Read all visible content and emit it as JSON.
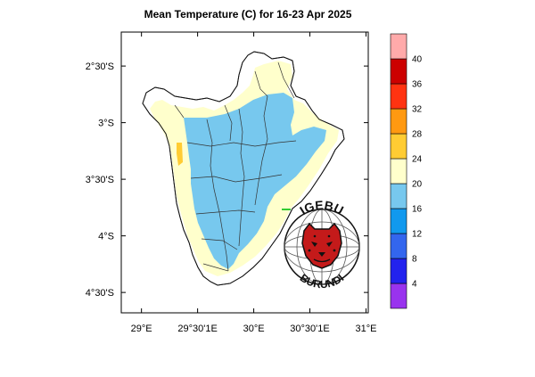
{
  "title": "Mean Temperature (C) for 16-23 Apr 2025",
  "x_axis": {
    "ticks": [
      {
        "lon": 29.0,
        "label": "29°E"
      },
      {
        "lon": 29.5,
        "label": "29°30'1E"
      },
      {
        "lon": 30.0,
        "label": "30°E"
      },
      {
        "lon": 30.5,
        "label": "30°30'1E"
      },
      {
        "lon": 31.0,
        "label": "31°E"
      }
    ]
  },
  "y_axis": {
    "ticks": [
      {
        "lat": -2.5,
        "label": "2°30'S"
      },
      {
        "lat": -3.0,
        "label": "3°S"
      },
      {
        "lat": -3.5,
        "label": "3°30'S"
      },
      {
        "lat": -4.0,
        "label": "4°S"
      },
      {
        "lat": -4.5,
        "label": "4°30'S"
      }
    ]
  },
  "extent": {
    "lon_min": 28.82,
    "lon_max": 31.02,
    "lat_min": -4.68,
    "lat_max": -2.2
  },
  "colorbar": {
    "bins": [
      {
        "from": null,
        "to": 4,
        "color": "#9933ee"
      },
      {
        "from": 4,
        "to": 8,
        "color": "#2222ee"
      },
      {
        "from": 8,
        "to": 12,
        "color": "#3366ee"
      },
      {
        "from": 12,
        "to": 16,
        "color": "#1199ee"
      },
      {
        "from": 16,
        "to": 20,
        "color": "#77c8ee"
      },
      {
        "from": 20,
        "to": 24,
        "color": "#ffffcc"
      },
      {
        "from": 24,
        "to": 28,
        "color": "#ffcc33"
      },
      {
        "from": 28,
        "to": 32,
        "color": "#ff9911"
      },
      {
        "from": 32,
        "to": 36,
        "color": "#ff3311"
      },
      {
        "from": 36,
        "to": 40,
        "color": "#cc0000"
      },
      {
        "from": 40,
        "to": null,
        "color": "#ffaaaa"
      }
    ],
    "labels": [
      "4",
      "8",
      "12",
      "16",
      "20",
      "24",
      "28",
      "32",
      "36",
      "40"
    ]
  },
  "logo": {
    "top_text": "IGEBU",
    "bottom_text": "BURUNDI"
  }
}
